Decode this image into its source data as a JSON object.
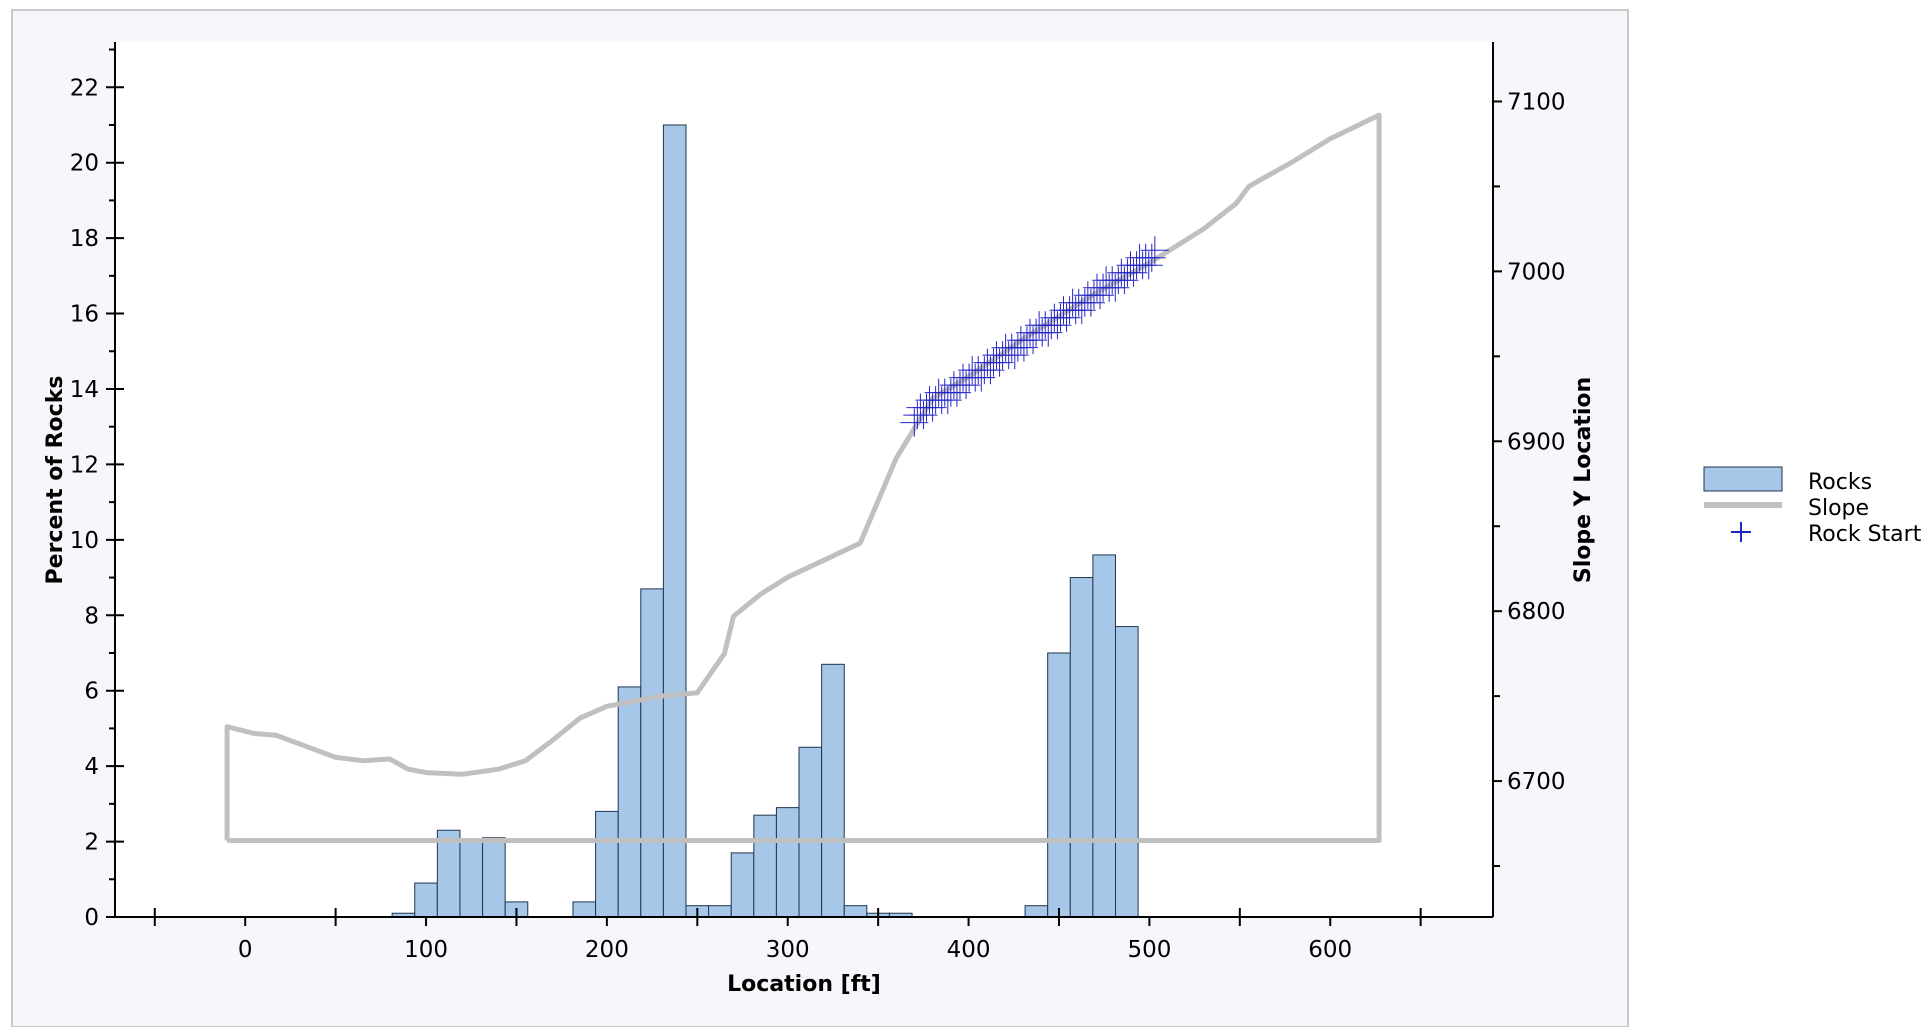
{
  "chart_data": {
    "type": "bar",
    "xlabel": "Location [ft]",
    "ylabel_left": "Percent of Rocks",
    "ylabel_right": "Slope Y Location",
    "xlim": [
      -72,
      690
    ],
    "ylim_left": [
      0,
      23.2
    ],
    "ylim_right": [
      6620,
      7135
    ],
    "x_ticks": [
      0,
      100,
      200,
      300,
      400,
      500,
      600
    ],
    "y_left_ticks": [
      0,
      2,
      4,
      6,
      8,
      10,
      12,
      14,
      16,
      18,
      20,
      22
    ],
    "y_right_ticks": [
      6700,
      6800,
      6900,
      7000,
      7100
    ],
    "grid": false,
    "legend_position": "right",
    "legend": [
      {
        "label": "Rocks",
        "key": "rocks"
      },
      {
        "label": "Slope",
        "key": "slope"
      },
      {
        "label": "Rock Start",
        "key": "rock_start"
      }
    ],
    "colors": {
      "bar_fill": "#a6c7e8",
      "bar_stroke": "#1f3550",
      "slope": "#c0c0c0",
      "rock_start": "#2424c4",
      "panel_background": "#f5f7fb"
    },
    "histogram": {
      "name": "Rocks",
      "bin_width": 12.5,
      "bins": [
        {
          "x0": 81.25,
          "value": 0.1
        },
        {
          "x0": 93.75,
          "value": 0.9
        },
        {
          "x0": 106.25,
          "value": 2.3
        },
        {
          "x0": 118.75,
          "value": 2.0
        },
        {
          "x0": 131.25,
          "value": 2.1
        },
        {
          "x0": 143.75,
          "value": 0.4
        },
        {
          "x0": 156.25,
          "value": 0.0
        },
        {
          "x0": 168.75,
          "value": 0.0
        },
        {
          "x0": 181.25,
          "value": 0.4
        },
        {
          "x0": 193.75,
          "value": 2.8
        },
        {
          "x0": 206.25,
          "value": 6.1
        },
        {
          "x0": 218.75,
          "value": 8.7
        },
        {
          "x0": 231.25,
          "value": 21.0
        },
        {
          "x0": 243.75,
          "value": 0.3
        },
        {
          "x0": 256.25,
          "value": 0.3
        },
        {
          "x0": 268.75,
          "value": 1.7
        },
        {
          "x0": 281.25,
          "value": 2.7
        },
        {
          "x0": 293.75,
          "value": 2.9
        },
        {
          "x0": 306.25,
          "value": 4.5
        },
        {
          "x0": 318.75,
          "value": 6.7
        },
        {
          "x0": 331.25,
          "value": 0.3
        },
        {
          "x0": 343.75,
          "value": 0.1
        },
        {
          "x0": 356.25,
          "value": 0.1
        },
        {
          "x0": 368.75,
          "value": 0.0
        },
        {
          "x0": 381.25,
          "value": 0.0
        },
        {
          "x0": 393.75,
          "value": 0.0
        },
        {
          "x0": 406.25,
          "value": 0.0
        },
        {
          "x0": 418.75,
          "value": 0.0
        },
        {
          "x0": 431.25,
          "value": 0.3
        },
        {
          "x0": 443.75,
          "value": 7.0
        },
        {
          "x0": 456.25,
          "value": 9.0
        },
        {
          "x0": 468.75,
          "value": 9.6
        },
        {
          "x0": 481.25,
          "value": 7.7
        }
      ]
    },
    "slope": {
      "name": "Slope",
      "points": [
        [
          -10,
          6665
        ],
        [
          -10,
          6732
        ],
        [
          5,
          6728
        ],
        [
          17,
          6727
        ],
        [
          50,
          6714
        ],
        [
          65,
          6712
        ],
        [
          80,
          6713
        ],
        [
          90,
          6707
        ],
        [
          100,
          6705
        ],
        [
          120,
          6704
        ],
        [
          140,
          6707
        ],
        [
          155,
          6712
        ],
        [
          170,
          6724
        ],
        [
          185,
          6737
        ],
        [
          200,
          6744
        ],
        [
          210,
          6746
        ],
        [
          220,
          6748
        ],
        [
          230,
          6750
        ],
        [
          250,
          6752
        ],
        [
          265,
          6775
        ],
        [
          270,
          6797
        ],
        [
          285,
          6810
        ],
        [
          300,
          6820
        ],
        [
          320,
          6830
        ],
        [
          340,
          6840
        ],
        [
          352,
          6870
        ],
        [
          360,
          6890
        ],
        [
          380,
          6925
        ],
        [
          400,
          6938
        ],
        [
          430,
          6960
        ],
        [
          470,
          6987
        ],
        [
          500,
          7005
        ],
        [
          530,
          7025
        ],
        [
          548,
          7040
        ],
        [
          555,
          7050
        ],
        [
          580,
          7065
        ],
        [
          600,
          7078
        ],
        [
          627,
          7092
        ],
        [
          627,
          6665
        ],
        [
          -10,
          6665
        ]
      ]
    },
    "rock_start": {
      "name": "Rock Start",
      "x_range": [
        370,
        503
      ],
      "y_range": [
        6915,
        7010
      ],
      "count": 80
    }
  }
}
